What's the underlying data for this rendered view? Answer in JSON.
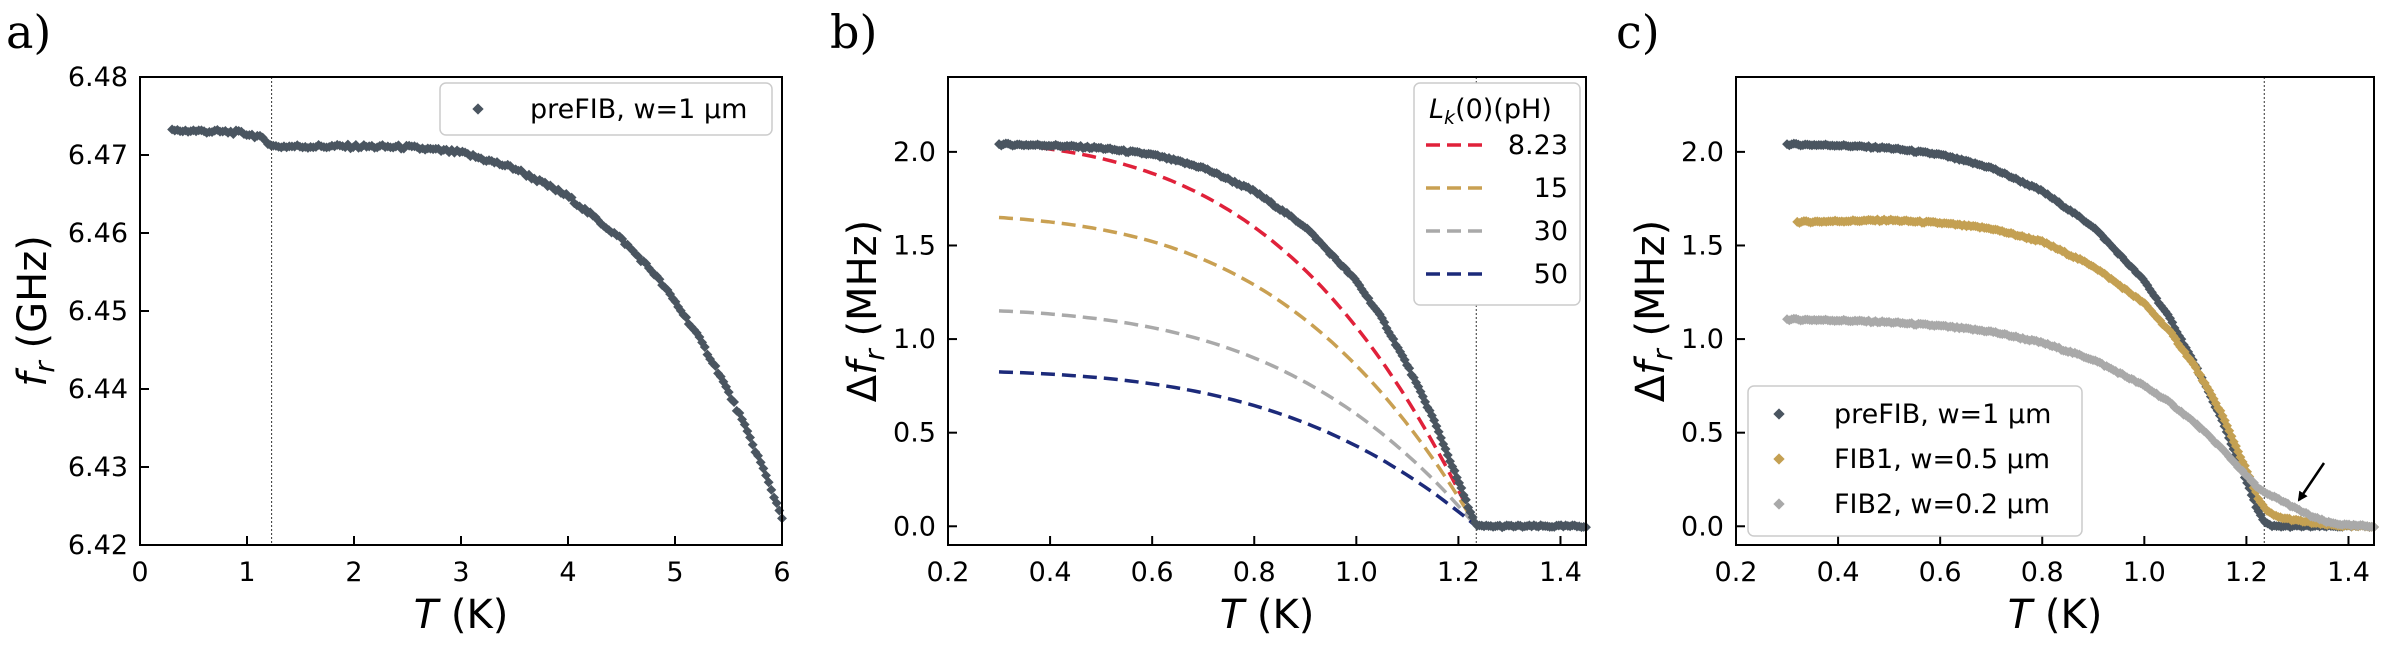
{
  "colors": {
    "preFIB": "#4a5560",
    "FIB1": "#c4a052",
    "FIB2": "#a9a9a9",
    "Lk_8_23": "#e0213a",
    "Lk_15": "#c9a052",
    "Lk_30": "#a9a9a9",
    "Lk_50": "#1c2a7a"
  },
  "chart_data": [
    {
      "panel": "a)",
      "type": "scatter",
      "xlabel": "T (K)",
      "ylabel": "f_r (GHz)",
      "xlim": [
        0,
        6
      ],
      "ylim": [
        6.42,
        6.48
      ],
      "xticks": [
        "0",
        "1",
        "2",
        "3",
        "4",
        "5",
        "6"
      ],
      "yticks": [
        "6.42",
        "6.43",
        "6.44",
        "6.45",
        "6.46",
        "6.47",
        "6.48"
      ],
      "vline_x": 1.23,
      "legend": {
        "placement": "top-right",
        "entries": [
          "preFIB, w=1 µm"
        ]
      },
      "series": [
        {
          "name": "preFIB, w=1 µm",
          "color_key": "preFIB",
          "x": [
            0.3,
            0.5,
            0.7,
            0.9,
            1.0,
            1.1,
            1.2,
            1.25,
            1.5,
            2.0,
            2.5,
            3.0,
            3.5,
            4.0,
            4.5,
            4.8,
            5.0,
            5.2,
            5.4,
            5.6,
            5.8,
            6.0
          ],
          "y": [
            6.4731,
            6.4731,
            6.473,
            6.4729,
            6.4727,
            6.4724,
            6.4716,
            6.4711,
            6.4711,
            6.4711,
            6.471,
            6.4703,
            6.4683,
            6.4647,
            6.4592,
            6.4549,
            6.4512,
            6.4471,
            6.4423,
            6.4368,
            6.4306,
            6.4236
          ]
        }
      ]
    },
    {
      "panel": "b)",
      "type": "line",
      "xlabel": "T (K)",
      "ylabel": "Δf_r (MHz)",
      "xlim": [
        0.2,
        1.45
      ],
      "ylim": [
        -0.1,
        2.4
      ],
      "xticks": [
        "0.2",
        "0.4",
        "0.6",
        "0.8",
        "1.0",
        "1.2",
        "1.4"
      ],
      "yticks": [
        "0.0",
        "0.5",
        "1.0",
        "1.5",
        "2.0"
      ],
      "vline_x": 1.235,
      "legend": {
        "placement": "top-right",
        "title": "L_k(0)(pH)",
        "entries": [
          "8.23",
          "15",
          "30",
          "50"
        ]
      },
      "data_series": {
        "name": "preFIB, w=1 µm",
        "color_key": "preFIB",
        "x": [
          0.3,
          0.4,
          0.5,
          0.6,
          0.7,
          0.8,
          0.9,
          1.0,
          1.05,
          1.1,
          1.15,
          1.2,
          1.22,
          1.235,
          1.25,
          1.3,
          1.35,
          1.4,
          1.45
        ],
        "y": [
          2.04,
          2.035,
          2.02,
          1.985,
          1.915,
          1.79,
          1.6,
          1.31,
          1.11,
          0.86,
          0.58,
          0.24,
          0.1,
          0.0,
          0.0,
          0.0,
          0.0,
          0.0,
          0.0
        ]
      },
      "model_series": [
        {
          "name": "8.23",
          "color_key": "Lk_8_23",
          "amp": 2.07
        },
        {
          "name": "15",
          "color_key": "Lk_15",
          "amp": 1.67
        },
        {
          "name": "30",
          "color_key": "Lk_30",
          "amp": 1.165
        },
        {
          "name": "50",
          "color_key": "Lk_50",
          "amp": 0.835
        }
      ],
      "model_Tc": 1.235
    },
    {
      "panel": "c)",
      "type": "scatter",
      "xlabel": "T (K)",
      "ylabel": "Δf_r (MHz)",
      "xlim": [
        0.2,
        1.45
      ],
      "ylim": [
        -0.1,
        2.4
      ],
      "xticks": [
        "0.2",
        "0.4",
        "0.6",
        "0.8",
        "1.0",
        "1.2",
        "1.4"
      ],
      "yticks": [
        "0.0",
        "0.5",
        "1.0",
        "1.5",
        "2.0"
      ],
      "vline_x": 1.235,
      "annotation": "arrow pointing at FIB2 tail near T = 1.3 K",
      "legend": {
        "placement": "bottom-left",
        "entries": [
          "preFIB, w=1 µm",
          "FIB1, w=0.5 µm",
          "FIB2, w=0.2 µm"
        ]
      },
      "series": [
        {
          "name": "preFIB, w=1 µm",
          "color_key": "preFIB",
          "x": [
            0.3,
            0.4,
            0.5,
            0.6,
            0.7,
            0.8,
            0.9,
            1.0,
            1.05,
            1.1,
            1.15,
            1.2,
            1.22,
            1.235,
            1.25,
            1.3,
            1.35,
            1.4,
            1.45
          ],
          "y": [
            2.04,
            2.035,
            2.02,
            1.985,
            1.915,
            1.79,
            1.6,
            1.31,
            1.11,
            0.86,
            0.58,
            0.24,
            0.1,
            0.02,
            0.0,
            0.0,
            0.0,
            0.0,
            0.0
          ]
        },
        {
          "name": "FIB1, w=0.5 µm",
          "color_key": "FIB1",
          "x": [
            0.32,
            0.4,
            0.5,
            0.6,
            0.7,
            0.8,
            0.9,
            1.0,
            1.05,
            1.1,
            1.15,
            1.2,
            1.225,
            1.24,
            1.26,
            1.3,
            1.35,
            1.4,
            1.45
          ],
          "y": [
            1.625,
            1.63,
            1.635,
            1.62,
            1.59,
            1.52,
            1.39,
            1.19,
            1.04,
            0.85,
            0.61,
            0.3,
            0.14,
            0.08,
            0.05,
            0.03,
            0.01,
            0.0,
            0.0
          ]
        },
        {
          "name": "FIB2, w=0.2 µm",
          "color_key": "FIB2",
          "x": [
            0.3,
            0.4,
            0.5,
            0.6,
            0.7,
            0.8,
            0.9,
            1.0,
            1.05,
            1.1,
            1.15,
            1.2,
            1.225,
            1.24,
            1.26,
            1.28,
            1.3,
            1.33,
            1.36,
            1.4,
            1.45
          ],
          "y": [
            1.105,
            1.1,
            1.09,
            1.07,
            1.04,
            0.98,
            0.89,
            0.75,
            0.66,
            0.55,
            0.42,
            0.27,
            0.2,
            0.17,
            0.15,
            0.12,
            0.09,
            0.05,
            0.02,
            0.005,
            0.0
          ]
        }
      ]
    }
  ]
}
